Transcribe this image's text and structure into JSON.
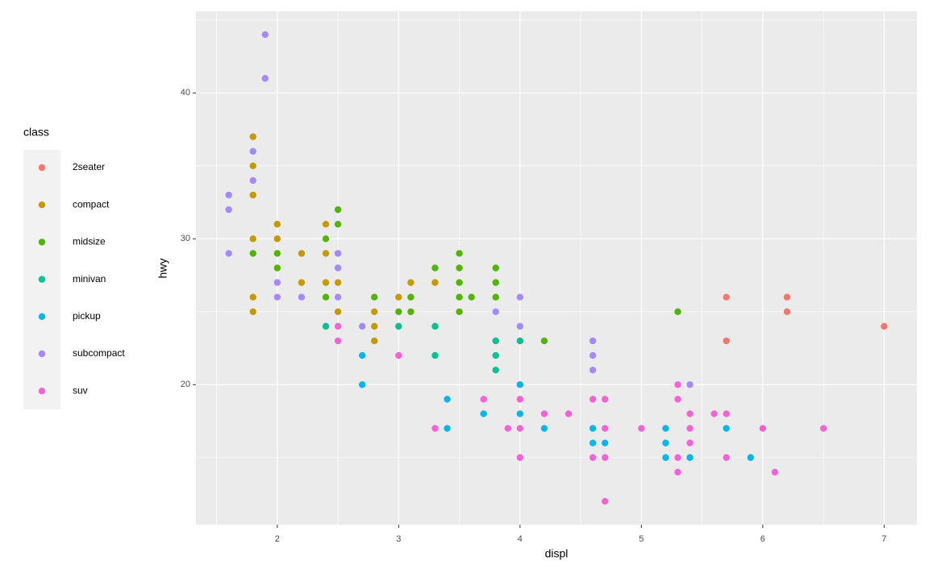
{
  "chart_data": {
    "type": "scatter",
    "x_label": "displ",
    "y_label": "hwy",
    "legend_title": "class",
    "legend_position": "left",
    "grid": true,
    "minor_grid": true,
    "xlim": [
      1.33,
      7.27
    ],
    "ylim": [
      10.4,
      45.6
    ],
    "xticks": [
      2,
      3,
      4,
      5,
      6,
      7
    ],
    "yticks": [
      20,
      30,
      40
    ],
    "series": [
      {
        "name": "2seater",
        "color": "#F8766D",
        "x": [
          5.7,
          5.7,
          6.2,
          6.2,
          7.0
        ],
        "y": [
          26,
          23,
          26,
          25,
          24
        ]
      },
      {
        "name": "compact",
        "color": "#C49A00",
        "x": [
          1.8,
          1.8,
          1.8,
          1.8,
          1.8,
          1.8,
          2.0,
          2.0,
          2.2,
          2.2,
          2.4,
          2.4,
          2.4,
          2.5,
          2.5,
          2.5,
          2.8,
          2.8,
          2.8,
          3.0,
          3.1,
          3.3
        ],
        "y": [
          37,
          35,
          33,
          30,
          26,
          25,
          31,
          30,
          29,
          27,
          31,
          29,
          27,
          29,
          27,
          25,
          25,
          24,
          23,
          26,
          27,
          27
        ]
      },
      {
        "name": "midsize",
        "color": "#53B400",
        "x": [
          1.8,
          2.0,
          2.0,
          2.4,
          2.4,
          2.5,
          2.5,
          2.8,
          3.0,
          3.1,
          3.1,
          3.3,
          3.5,
          3.5,
          3.5,
          3.5,
          3.5,
          3.6,
          3.8,
          3.8,
          3.8,
          4.2,
          5.3
        ],
        "y": [
          29,
          29,
          28,
          30,
          26,
          32,
          31,
          26,
          25,
          26,
          25,
          28,
          29,
          28,
          27,
          26,
          25,
          26,
          28,
          27,
          26,
          23,
          25
        ]
      },
      {
        "name": "minivan",
        "color": "#00C094",
        "x": [
          2.4,
          3.0,
          3.3,
          3.3,
          3.8,
          3.8,
          3.8,
          4.0
        ],
        "y": [
          24,
          24,
          24,
          22,
          23,
          22,
          21,
          23
        ]
      },
      {
        "name": "pickup",
        "color": "#00B6EB",
        "x": [
          2.7,
          2.7,
          3.4,
          3.4,
          3.7,
          4.0,
          4.0,
          4.2,
          4.6,
          4.6,
          4.7,
          5.2,
          5.2,
          5.2,
          5.4,
          5.7,
          5.9
        ],
        "y": [
          22,
          20,
          19,
          17,
          18,
          20,
          18,
          17,
          17,
          16,
          16,
          17,
          16,
          15,
          15,
          17,
          15
        ]
      },
      {
        "name": "subcompact",
        "color": "#A58AFF",
        "x": [
          1.6,
          1.6,
          1.6,
          1.8,
          1.8,
          1.9,
          1.9,
          2.0,
          2.0,
          2.2,
          2.5,
          2.5,
          2.5,
          2.7,
          3.8,
          4.0,
          4.0,
          4.6,
          4.6,
          4.6,
          5.4
        ],
        "y": [
          33,
          32,
          29,
          36,
          34,
          44,
          41,
          27,
          26,
          26,
          29,
          28,
          26,
          24,
          25,
          26,
          24,
          23,
          22,
          21,
          20
        ]
      },
      {
        "name": "suv",
        "color": "#FB61D7",
        "x": [
          2.5,
          2.5,
          3.0,
          3.3,
          3.7,
          3.9,
          4.0,
          4.0,
          4.0,
          4.2,
          4.4,
          4.6,
          4.6,
          4.7,
          4.7,
          4.7,
          4.7,
          5.0,
          5.3,
          5.3,
          5.3,
          5.3,
          5.4,
          5.4,
          5.4,
          5.6,
          5.7,
          5.7,
          6.0,
          6.1,
          6.5
        ],
        "y": [
          24,
          23,
          22,
          17,
          19,
          17,
          19,
          17,
          15,
          18,
          18,
          19,
          15,
          19,
          17,
          15,
          12,
          17,
          20,
          19,
          15,
          14,
          18,
          17,
          16,
          18,
          18,
          15,
          17,
          14,
          17
        ]
      }
    ]
  }
}
